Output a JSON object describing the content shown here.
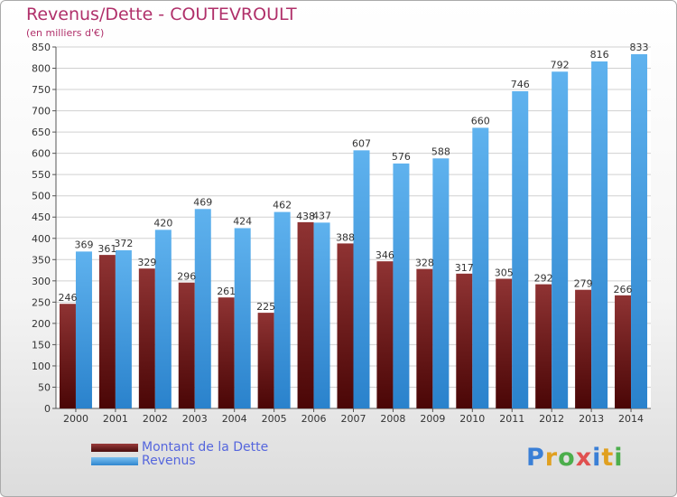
{
  "title": "Revenus/Dette - COUTEVROULT",
  "subtitle": "(en milliers d'€)",
  "logo": "Proxiti",
  "colors": {
    "dette": "#7a2a2a",
    "revenus": "#4aa3e6",
    "title": "#b0306a",
    "legend_text": "#5566dd"
  },
  "chart_data": {
    "type": "bar",
    "title": "Revenus/Dette - COUTEVROULT",
    "ylabel": "(en milliers d'€)",
    "xlabel": "",
    "ylim": [
      0,
      850
    ],
    "ytick_step": 50,
    "grid": true,
    "legend_position": "bottom-left",
    "categories": [
      "2000",
      "2001",
      "2002",
      "2003",
      "2004",
      "2005",
      "2006",
      "2007",
      "2008",
      "2009",
      "2010",
      "2011",
      "2012",
      "2013",
      "2014"
    ],
    "series": [
      {
        "name": "Montant de la Dette",
        "values": [
          246,
          361,
          329,
          296,
          261,
          225,
          438,
          388,
          346,
          328,
          317,
          305,
          292,
          279,
          266
        ]
      },
      {
        "name": "Revenus",
        "values": [
          369,
          372,
          420,
          469,
          424,
          462,
          437,
          607,
          576,
          588,
          660,
          746,
          792,
          816,
          833
        ]
      }
    ]
  }
}
